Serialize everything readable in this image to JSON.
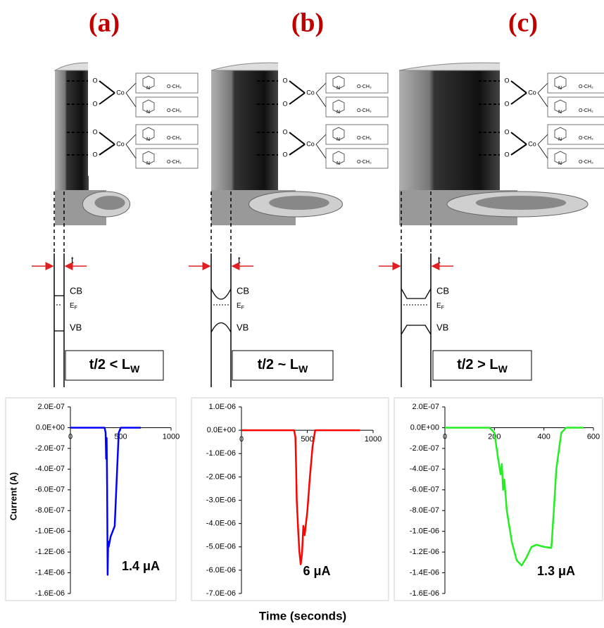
{
  "diagram": {
    "panels": [
      {
        "label": "(a)",
        "condition": {
          "main": "t/2 <  L",
          "sub": "W"
        }
      },
      {
        "label": "(b)",
        "condition": {
          "main": "t/2 ~ L",
          "sub": "W"
        }
      },
      {
        "label": "(c)",
        "condition": {
          "main": "t/2 > L",
          "sub": "W"
        }
      }
    ],
    "thickness": "t",
    "cb": "CB",
    "ef": {
      "main": "E",
      "sub": "F"
    },
    "vb": "VB",
    "molecule": {
      "metal": "Co",
      "oxygen": "O",
      "nitrogen": "N",
      "ester": "O-CH₃"
    }
  },
  "chart_data": [
    {
      "type": "line",
      "y_label": "Current (A)",
      "annotation": "1.4 μA",
      "color": "#0000ff",
      "x": [
        0,
        100,
        200,
        300,
        340,
        350,
        355,
        360,
        365,
        370,
        375,
        380,
        390,
        400,
        420,
        440,
        460,
        480,
        500,
        600,
        700
      ],
      "values": [
        0,
        0,
        0,
        0,
        0,
        -5e-08,
        -3e-07,
        -1e-07,
        -6e-07,
        -1.42e-06,
        -1.1e-06,
        -1.15e-06,
        -1.1e-06,
        -1.05e-06,
        -1e-06,
        -9.5e-07,
        -5e-07,
        -5e-08,
        0,
        0,
        0
      ],
      "xlim": [
        0,
        1000
      ],
      "xticks": [
        0,
        500,
        1000
      ],
      "ylim": [
        -1.6e-06,
        2e-07
      ],
      "yticks": [
        {
          "value": 2e-07,
          "label": "2.0E-07"
        },
        {
          "value": 0,
          "label": "0.0E+00"
        },
        {
          "value": -2e-07,
          "label": "-2.0E-07"
        },
        {
          "value": -4e-07,
          "label": "-4.0E-07"
        },
        {
          "value": -6e-07,
          "label": "-6.0E-07"
        },
        {
          "value": -8e-07,
          "label": "-8.0E-07"
        },
        {
          "value": -1e-06,
          "label": "-1.0E-06"
        },
        {
          "value": -1.2e-06,
          "label": "-1.2E-06"
        },
        {
          "value": -1.4e-06,
          "label": "-1.4E-06"
        },
        {
          "value": -1.6e-06,
          "label": "-1.6E-06"
        }
      ]
    },
    {
      "type": "line",
      "x_label": "Time (seconds)",
      "annotation": "6 μA",
      "color": "#ff0000",
      "x": [
        0,
        100,
        200,
        300,
        400,
        410,
        415,
        420,
        430,
        440,
        450,
        460,
        470,
        480,
        500,
        520,
        540,
        560,
        600,
        700,
        800,
        900
      ],
      "values": [
        0,
        0,
        0,
        0,
        0,
        -3e-07,
        -1.5e-06,
        -3e-06,
        -4.2e-06,
        -5.2e-06,
        -5.75e-06,
        -5.3e-06,
        -4.1e-06,
        -4.5e-06,
        -3.5e-06,
        -2e-06,
        -7e-07,
        0,
        0,
        0,
        0,
        0
      ],
      "xlim": [
        0,
        1000
      ],
      "xticks": [
        0,
        500,
        1000
      ],
      "ylim": [
        -7e-06,
        1e-06
      ],
      "yticks": [
        {
          "value": 1e-06,
          "label": "1.0E-06"
        },
        {
          "value": 0,
          "label": "0.0E+00"
        },
        {
          "value": -1e-06,
          "label": "-1.0E-06"
        },
        {
          "value": -2e-06,
          "label": "-2.0E-06"
        },
        {
          "value": -3e-06,
          "label": "-3.0E-06"
        },
        {
          "value": -4e-06,
          "label": "-4.0E-06"
        },
        {
          "value": -5e-06,
          "label": "-5.0E-06"
        },
        {
          "value": -6e-06,
          "label": "-6.0E-06"
        },
        {
          "value": -7e-06,
          "label": "-7.0E-06"
        }
      ]
    },
    {
      "type": "line",
      "annotation": "1.3 μA",
      "color": "#22ee22",
      "x": [
        0,
        100,
        180,
        200,
        215,
        225,
        230,
        235,
        240,
        250,
        270,
        290,
        310,
        330,
        350,
        370,
        400,
        430,
        440,
        450,
        470,
        490,
        520,
        560
      ],
      "values": [
        0,
        0,
        0,
        -5e-08,
        -3e-07,
        -4.5e-07,
        -3.5e-07,
        -6e-07,
        -5e-07,
        -8e-07,
        -1.1e-06,
        -1.28e-06,
        -1.33e-06,
        -1.25e-06,
        -1.15e-06,
        -1.13e-06,
        -1.15e-06,
        -1.16e-06,
        -8e-07,
        -4e-07,
        -5e-08,
        0,
        0,
        0
      ],
      "xlim": [
        0,
        600
      ],
      "xticks": [
        0,
        200,
        400,
        600
      ],
      "ylim": [
        -1.6e-06,
        2e-07
      ],
      "yticks": [
        {
          "value": 2e-07,
          "label": "2.0E-07"
        },
        {
          "value": 0,
          "label": "0.0E+00"
        },
        {
          "value": -2e-07,
          "label": "-2.0E-07"
        },
        {
          "value": -4e-07,
          "label": "-4.0E-07"
        },
        {
          "value": -6e-07,
          "label": "-6.0E-07"
        },
        {
          "value": -8e-07,
          "label": "-8.0E-07"
        },
        {
          "value": -1e-06,
          "label": "-1.0E-06"
        },
        {
          "value": -1.2e-06,
          "label": "-1.2E-06"
        },
        {
          "value": -1.4e-06,
          "label": "-1.4E-06"
        },
        {
          "value": -1.6e-06,
          "label": "-1.6E-06"
        }
      ]
    }
  ]
}
